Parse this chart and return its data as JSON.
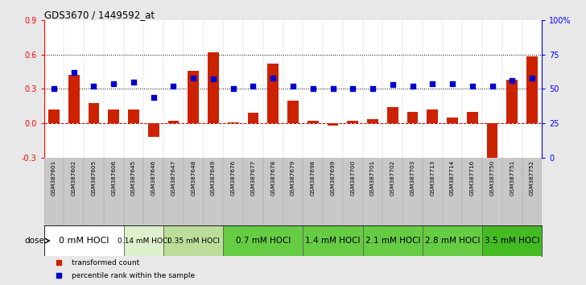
{
  "title": "GDS3670 / 1449592_at",
  "samples": [
    "GSM387601",
    "GSM387602",
    "GSM387605",
    "GSM387606",
    "GSM387645",
    "GSM387646",
    "GSM387647",
    "GSM387648",
    "GSM387649",
    "GSM387676",
    "GSM387677",
    "GSM387678",
    "GSM387679",
    "GSM387698",
    "GSM387699",
    "GSM387700",
    "GSM387701",
    "GSM387702",
    "GSM387703",
    "GSM387713",
    "GSM387714",
    "GSM387716",
    "GSM387750",
    "GSM387751",
    "GSM387752"
  ],
  "transformed_count": [
    0.12,
    0.42,
    0.18,
    0.12,
    0.12,
    -0.12,
    0.02,
    0.46,
    0.62,
    0.01,
    0.09,
    0.52,
    0.2,
    0.02,
    -0.02,
    0.02,
    0.04,
    0.14,
    0.1,
    0.12,
    0.05,
    0.1,
    -0.32,
    0.38,
    0.58
  ],
  "percentile_rank": [
    50,
    62,
    52,
    54,
    55,
    44,
    52,
    58,
    57,
    50,
    52,
    58,
    52,
    50,
    50,
    50,
    50,
    53,
    52,
    54,
    54,
    52,
    52,
    56,
    58
  ],
  "dose_groups": [
    {
      "label": "0 mM HOCl",
      "start": 0,
      "end": 4,
      "color": "#ffffff",
      "fontsize": 8
    },
    {
      "label": "0.14 mM HOCl",
      "start": 4,
      "end": 6,
      "color": "#ddf0cc",
      "fontsize": 6.5
    },
    {
      "label": "0.35 mM HOCl",
      "start": 6,
      "end": 9,
      "color": "#bbdd99",
      "fontsize": 6.5
    },
    {
      "label": "0.7 mM HOCl",
      "start": 9,
      "end": 13,
      "color": "#66cc44",
      "fontsize": 7.5
    },
    {
      "label": "1.4 mM HOCl",
      "start": 13,
      "end": 16,
      "color": "#66cc44",
      "fontsize": 7.5
    },
    {
      "label": "2.1 mM HOCl",
      "start": 16,
      "end": 19,
      "color": "#66cc44",
      "fontsize": 7.5
    },
    {
      "label": "2.8 mM HOCl",
      "start": 19,
      "end": 22,
      "color": "#66cc44",
      "fontsize": 7.5
    },
    {
      "label": "3.5 mM HOCl",
      "start": 22,
      "end": 25,
      "color": "#44bb22",
      "fontsize": 7.5
    }
  ],
  "bar_color": "#cc2200",
  "dot_color": "#0000cc",
  "ylim_left": [
    -0.3,
    0.9
  ],
  "ylim_right": [
    0,
    100
  ],
  "yticks_left": [
    -0.3,
    0.0,
    0.3,
    0.6,
    0.9
  ],
  "yticks_right": [
    0,
    25,
    50,
    75,
    100
  ],
  "yticklabels_right": [
    "0",
    "25",
    "50",
    "75",
    "100%"
  ],
  "hline_values": [
    0.3,
    0.6
  ],
  "sample_label_bg": "#c8c8c8",
  "dose_row_bg": "#a8a8a8",
  "fig_bg": "#e8e8e8"
}
